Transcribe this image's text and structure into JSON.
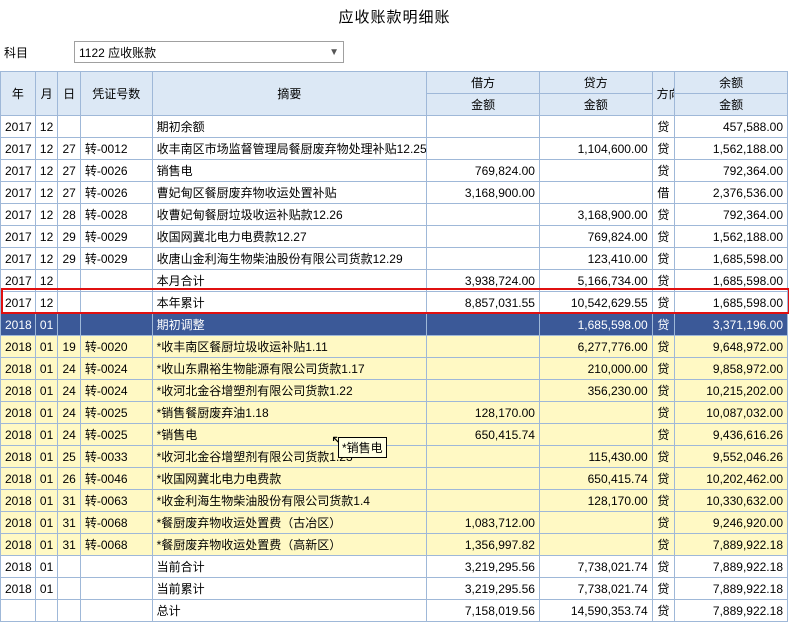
{
  "title": "应收账款明细账",
  "subject": {
    "label": "科目",
    "value": "1122 应收账款"
  },
  "headers": {
    "year": "年",
    "month": "月",
    "day": "日",
    "voucher": "凭证号数",
    "summary": "摘要",
    "debit": "借方",
    "credit": "贷方",
    "dir": "方向",
    "balance": "余额",
    "amount": "金额"
  },
  "tooltip_text": "*销售电",
  "rows": [
    {
      "y": "2017",
      "m": "12",
      "d": "",
      "v": "",
      "s": "期初余额",
      "dr": "",
      "cr": "",
      "dir": "贷",
      "bal": "457,588.00",
      "hl": ""
    },
    {
      "y": "2017",
      "m": "12",
      "d": "27",
      "v": "转-0012",
      "s": "收丰南区市场监督管理局餐厨废弃物处理补贴12.25",
      "dr": "",
      "cr": "1,104,600.00",
      "dir": "贷",
      "bal": "1,562,188.00",
      "hl": ""
    },
    {
      "y": "2017",
      "m": "12",
      "d": "27",
      "v": "转-0026",
      "s": "销售电",
      "dr": "769,824.00",
      "cr": "",
      "dir": "贷",
      "bal": "792,364.00",
      "hl": ""
    },
    {
      "y": "2017",
      "m": "12",
      "d": "27",
      "v": "转-0026",
      "s": "曹妃甸区餐厨废弃物收运处置补贴",
      "dr": "3,168,900.00",
      "cr": "",
      "dir": "借",
      "bal": "2,376,536.00",
      "hl": ""
    },
    {
      "y": "2017",
      "m": "12",
      "d": "28",
      "v": "转-0028",
      "s": "收曹妃甸餐厨垃圾收运补贴款12.26",
      "dr": "",
      "cr": "3,168,900.00",
      "dir": "贷",
      "bal": "792,364.00",
      "hl": ""
    },
    {
      "y": "2017",
      "m": "12",
      "d": "29",
      "v": "转-0029",
      "s": "收国网冀北电力电费款12.27",
      "dr": "",
      "cr": "769,824.00",
      "dir": "贷",
      "bal": "1,562,188.00",
      "hl": ""
    },
    {
      "y": "2017",
      "m": "12",
      "d": "29",
      "v": "转-0029",
      "s": "收唐山金利海生物柴油股份有限公司货款12.29",
      "dr": "",
      "cr": "123,410.00",
      "dir": "贷",
      "bal": "1,685,598.00",
      "hl": ""
    },
    {
      "y": "2017",
      "m": "12",
      "d": "",
      "v": "",
      "s": "本月合计",
      "dr": "3,938,724.00",
      "cr": "5,166,734.00",
      "dir": "贷",
      "bal": "1,685,598.00",
      "hl": ""
    },
    {
      "y": "2017",
      "m": "12",
      "d": "",
      "v": "",
      "s": "本年累计",
      "dr": "8,857,031.55",
      "cr": "10,542,629.55",
      "dir": "贷",
      "bal": "1,685,598.00",
      "hl": ""
    },
    {
      "y": "2018",
      "m": "01",
      "d": "",
      "v": "",
      "s": "期初调整",
      "dr": "",
      "cr": "1,685,598.00",
      "dir": "贷",
      "bal": "3,371,196.00",
      "hl": "sel"
    },
    {
      "y": "2018",
      "m": "01",
      "d": "19",
      "v": "转-0020",
      "s": "*收丰南区餐厨垃圾收运补贴1.11",
      "dr": "",
      "cr": "6,277,776.00",
      "dir": "贷",
      "bal": "9,648,972.00",
      "hl": "y"
    },
    {
      "y": "2018",
      "m": "01",
      "d": "24",
      "v": "转-0024",
      "s": "*收山东鼎裕生物能源有限公司货款1.17",
      "dr": "",
      "cr": "210,000.00",
      "dir": "贷",
      "bal": "9,858,972.00",
      "hl": "y"
    },
    {
      "y": "2018",
      "m": "01",
      "d": "24",
      "v": "转-0024",
      "s": "*收河北金谷增塑剂有限公司货款1.22",
      "dr": "",
      "cr": "356,230.00",
      "dir": "贷",
      "bal": "10,215,202.00",
      "hl": "y"
    },
    {
      "y": "2018",
      "m": "01",
      "d": "24",
      "v": "转-0025",
      "s": "*销售餐厨废弃油1.18",
      "dr": "128,170.00",
      "cr": "",
      "dir": "贷",
      "bal": "10,087,032.00",
      "hl": "y"
    },
    {
      "y": "2018",
      "m": "01",
      "d": "24",
      "v": "转-0025",
      "s": "*销售电",
      "dr": "650,415.74",
      "cr": "",
      "dir": "贷",
      "bal": "9,436,616.26",
      "hl": "y"
    },
    {
      "y": "2018",
      "m": "01",
      "d": "25",
      "v": "转-0033",
      "s": "*收河北金谷增塑剂有限公司货款1.23",
      "dr": "",
      "cr": "115,430.00",
      "dir": "贷",
      "bal": "9,552,046.26",
      "hl": "y"
    },
    {
      "y": "2018",
      "m": "01",
      "d": "26",
      "v": "转-0046",
      "s": "*收国网冀北电力电费款",
      "dr": "",
      "cr": "650,415.74",
      "dir": "贷",
      "bal": "10,202,462.00",
      "hl": "y"
    },
    {
      "y": "2018",
      "m": "01",
      "d": "31",
      "v": "转-0063",
      "s": "*收金利海生物柴油股份有限公司货款1.4",
      "dr": "",
      "cr": "128,170.00",
      "dir": "贷",
      "bal": "10,330,632.00",
      "hl": "y"
    },
    {
      "y": "2018",
      "m": "01",
      "d": "31",
      "v": "转-0068",
      "s": "*餐厨废弃物收运处置费（古冶区）",
      "dr": "1,083,712.00",
      "cr": "",
      "dir": "贷",
      "bal": "9,246,920.00",
      "hl": "y"
    },
    {
      "y": "2018",
      "m": "01",
      "d": "31",
      "v": "转-0068",
      "s": "*餐厨废弃物收运处置费（高新区）",
      "dr": "1,356,997.82",
      "cr": "",
      "dir": "贷",
      "bal": "7,889,922.18",
      "hl": "y"
    },
    {
      "y": "2018",
      "m": "01",
      "d": "",
      "v": "",
      "s": "当前合计",
      "dr": "3,219,295.56",
      "cr": "7,738,021.74",
      "dir": "贷",
      "bal": "7,889,922.18",
      "hl": ""
    },
    {
      "y": "2018",
      "m": "01",
      "d": "",
      "v": "",
      "s": "当前累计",
      "dr": "3,219,295.56",
      "cr": "7,738,021.74",
      "dir": "贷",
      "bal": "7,889,922.18",
      "hl": ""
    },
    {
      "y": "",
      "m": "",
      "d": "",
      "v": "",
      "s": "总计",
      "dr": "7,158,019.56",
      "cr": "14,590,353.74",
      "dir": "贷",
      "bal": "7,889,922.18",
      "hl": ""
    }
  ]
}
